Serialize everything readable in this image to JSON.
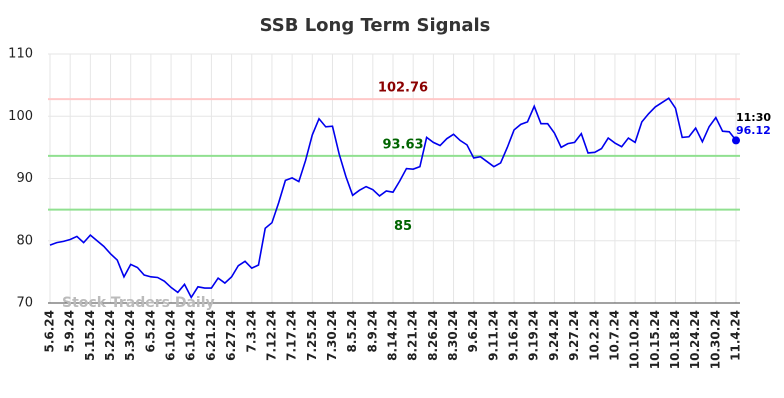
{
  "chart_data": {
    "type": "line",
    "title": "SSB Long Term Signals",
    "categories": [
      "5.6.24",
      null,
      null,
      "5.9.24",
      null,
      null,
      "5.15.24",
      null,
      null,
      "5.22.24",
      null,
      null,
      "5.30.24",
      null,
      null,
      "6.5.24",
      null,
      null,
      "6.10.24",
      null,
      null,
      "6.14.24",
      null,
      null,
      "6.21.24",
      null,
      null,
      "6.27.24",
      null,
      null,
      "7.3.24",
      null,
      null,
      "7.12.24",
      null,
      null,
      "7.17.24",
      null,
      null,
      "7.25.24",
      null,
      null,
      "7.30.24",
      null,
      null,
      "8.5.24",
      null,
      null,
      "8.9.24",
      null,
      null,
      "8.14.24",
      null,
      null,
      "8.21.24",
      null,
      null,
      "8.26.24",
      null,
      null,
      "8.30.24",
      null,
      null,
      "9.6.24",
      null,
      null,
      "9.11.24",
      null,
      null,
      "9.16.24",
      null,
      null,
      "9.19.24",
      null,
      null,
      "9.24.24",
      null,
      null,
      "9.27.24",
      null,
      null,
      "10.2.24",
      null,
      null,
      "10.7.24",
      null,
      null,
      "10.10.24",
      null,
      null,
      "10.15.24",
      null,
      null,
      "10.18.24",
      null,
      null,
      "10.24.24",
      null,
      null,
      "10.30.24",
      null,
      null,
      "11.4.24"
    ],
    "values": [
      79.3,
      79.7,
      79.9,
      80.2,
      80.7,
      79.7,
      80.9,
      80.0,
      79.1,
      77.9,
      76.9,
      74.2,
      76.2,
      75.7,
      74.5,
      74.2,
      74.1,
      73.5,
      72.5,
      71.7,
      73.0,
      70.9,
      72.6,
      72.4,
      72.4,
      74.0,
      73.2,
      74.2,
      76.0,
      76.7,
      75.6,
      76.1,
      82.0,
      82.9,
      86.1,
      89.7,
      90.1,
      89.5,
      92.9,
      97.0,
      99.6,
      98.3,
      98.4,
      93.9,
      90.3,
      87.3,
      88.1,
      88.7,
      88.2,
      87.2,
      88.0,
      87.8,
      89.6,
      91.6,
      91.5,
      91.9,
      96.6,
      95.8,
      95.3,
      96.4,
      97.1,
      96.1,
      95.4,
      93.3,
      93.5,
      92.7,
      91.9,
      92.5,
      95.0,
      97.8,
      98.7,
      99.1,
      101.6,
      98.8,
      98.8,
      97.3,
      95.0,
      95.6,
      95.8,
      97.2,
      94.1,
      94.2,
      94.8,
      96.5,
      95.7,
      95.1,
      96.5,
      95.8,
      99.1,
      100.4,
      101.5,
      102.2,
      102.9,
      101.3,
      96.6,
      96.7,
      98.1,
      95.9,
      98.3,
      99.8,
      97.6,
      97.5,
      96.12
    ],
    "color": "#0000ee",
    "ylim": [
      70,
      110
    ],
    "yticks": [
      70,
      80,
      90,
      100,
      110
    ],
    "grid": true,
    "hlines": [
      {
        "value": 102.76,
        "color": "#ffc8c8",
        "label_color": "#8b0000"
      },
      {
        "value": 93.63,
        "color": "#90e090",
        "label_color": "#006400"
      },
      {
        "value": 85,
        "color": "#90e090",
        "label_color": "#006400"
      }
    ],
    "last_time": "11:30",
    "watermark": "Stock Traders Daily"
  }
}
